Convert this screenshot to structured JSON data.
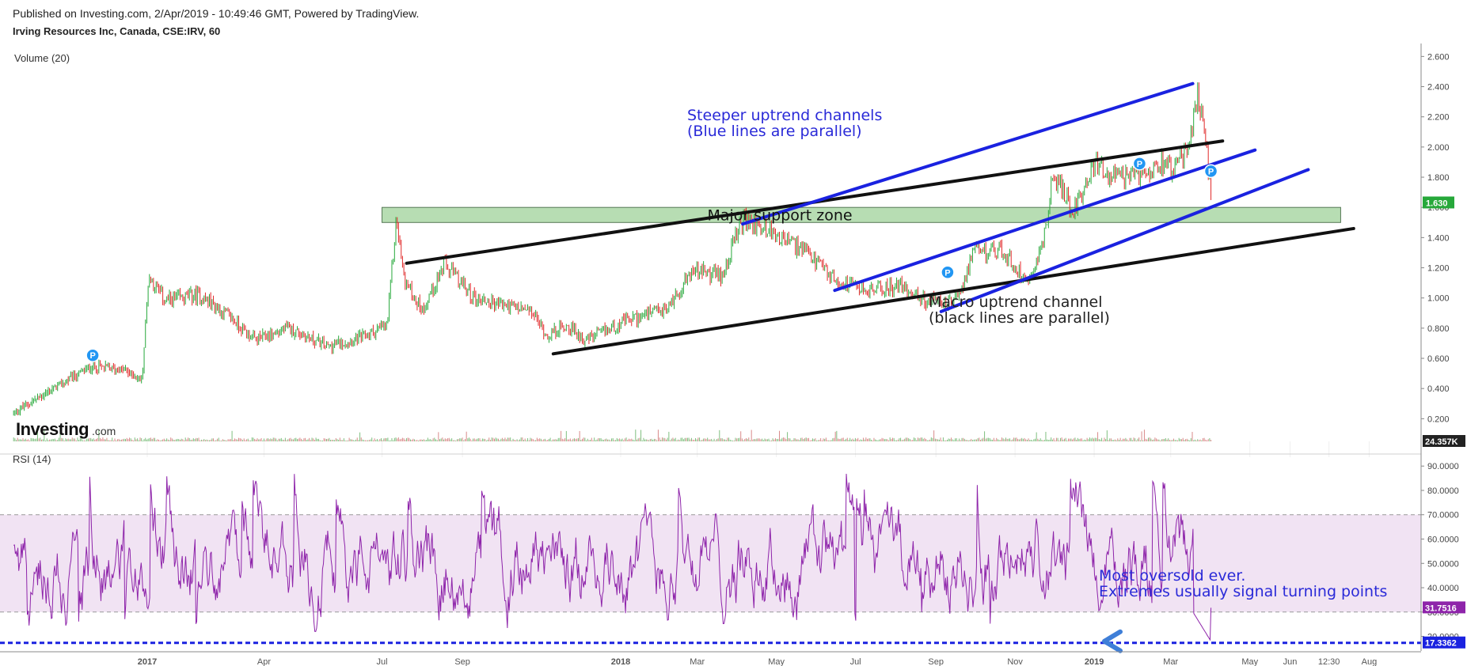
{
  "header": {
    "published": "Published on Investing.com, 2/Apr/2019 - 10:49:46 GMT, Powered by TradingView.",
    "symbol": "Irving Resources Inc, Canada, CSE:IRV, 60"
  },
  "logo": {
    "main": "Investing",
    "suffix": ".com"
  },
  "chart_data": [
    {
      "type": "candlestick",
      "pane": "price",
      "title": "Irving Resources Inc, Canada, CSE:IRV, 60",
      "volume_label": "Volume (20)",
      "y_ticks": [
        "2.600",
        "2.400",
        "2.200",
        "2.000",
        "1.800",
        "1.600",
        "1.400",
        "1.200",
        "1.000",
        "0.800",
        "0.600",
        "0.400",
        "0.200"
      ],
      "ylim": [
        0.05,
        2.67
      ],
      "last_price": "1.630",
      "volume_readout": "24.357K",
      "support_zone": {
        "label": "Major support zone",
        "low": 1.5,
        "high": 1.6,
        "x_start": "2017-07-01",
        "x_end": "2019-07-10"
      },
      "channels": [
        {
          "name": "macro",
          "color": "#111111",
          "lines": [
            {
              "x0": "2017-07-20",
              "y0": 1.23,
              "x1": "2019-04-10",
              "y1": 2.04
            },
            {
              "x0": "2017-11-10",
              "y0": 0.63,
              "x1": "2019-07-20",
              "y1": 1.46
            }
          ]
        },
        {
          "name": "steep",
          "color": "#1a22e0",
          "lines": [
            {
              "x0": "2018-04-05",
              "y0": 1.49,
              "x1": "2019-03-18",
              "y1": 2.42
            },
            {
              "x0": "2018-06-15",
              "y0": 1.05,
              "x1": "2019-05-05",
              "y1": 1.98
            },
            {
              "x0": "2018-09-05",
              "y0": 0.91,
              "x1": "2019-06-15",
              "y1": 1.85
            }
          ]
        }
      ],
      "price_path": [
        [
          "2016-09-20",
          0.24
        ],
        [
          "2016-10-25",
          0.42
        ],
        [
          "2016-11-20",
          0.55
        ],
        [
          "2016-12-15",
          0.52
        ],
        [
          "2016-12-28",
          0.45
        ],
        [
          "2017-01-02",
          1.15
        ],
        [
          "2017-01-15",
          0.98
        ],
        [
          "2017-02-10",
          1.02
        ],
        [
          "2017-03-05",
          0.88
        ],
        [
          "2017-03-25",
          0.72
        ],
        [
          "2017-04-20",
          0.8
        ],
        [
          "2017-05-20",
          0.68
        ],
        [
          "2017-06-15",
          0.74
        ],
        [
          "2017-07-05",
          0.82
        ],
        [
          "2017-07-12",
          1.53
        ],
        [
          "2017-07-18",
          1.12
        ],
        [
          "2017-08-01",
          0.92
        ],
        [
          "2017-08-18",
          1.22
        ],
        [
          "2017-09-10",
          1.0
        ],
        [
          "2017-10-05",
          0.95
        ],
        [
          "2017-10-25",
          0.9
        ],
        [
          "2017-11-05",
          0.75
        ],
        [
          "2017-11-20",
          0.82
        ],
        [
          "2017-12-05",
          0.72
        ],
        [
          "2018-01-05",
          0.85
        ],
        [
          "2018-02-05",
          0.92
        ],
        [
          "2018-02-25",
          1.18
        ],
        [
          "2018-03-20",
          1.15
        ],
        [
          "2018-04-05",
          1.52
        ],
        [
          "2018-04-25",
          1.45
        ],
        [
          "2018-05-20",
          1.32
        ],
        [
          "2018-06-15",
          1.12
        ],
        [
          "2018-07-10",
          1.05
        ],
        [
          "2018-08-05",
          1.08
        ],
        [
          "2018-08-25",
          0.98
        ],
        [
          "2018-09-15",
          0.96
        ],
        [
          "2018-10-01",
          1.3
        ],
        [
          "2018-10-20",
          1.32
        ],
        [
          "2018-11-10",
          1.12
        ],
        [
          "2018-11-22",
          1.35
        ],
        [
          "2018-12-01",
          1.82
        ],
        [
          "2018-12-15",
          1.58
        ],
        [
          "2019-01-01",
          1.88
        ],
        [
          "2019-01-20",
          1.78
        ],
        [
          "2019-02-05",
          1.82
        ],
        [
          "2019-02-20",
          1.92
        ],
        [
          "2019-03-05",
          1.86
        ],
        [
          "2019-03-15",
          2.0
        ],
        [
          "2019-03-22",
          2.35
        ],
        [
          "2019-03-28",
          2.05
        ],
        [
          "2019-04-01",
          1.63
        ]
      ],
      "markers": [
        {
          "label": "P",
          "x": "2016-11-20",
          "y": 0.62
        },
        {
          "label": "P",
          "x": "2018-09-10",
          "y": 1.17
        },
        {
          "label": "P",
          "x": "2019-02-05",
          "y": 1.89
        },
        {
          "label": "P",
          "x": "2019-04-01",
          "y": 1.84
        }
      ],
      "annotations": [
        {
          "lines": [
            "Steeper uptrend channels",
            "(Blue lines are parallel)"
          ],
          "color": "#2a2ad8"
        },
        {
          "lines": [
            "Macro uptrend channel",
            "(black lines are parallel)"
          ],
          "color": "#222222"
        }
      ]
    },
    {
      "type": "line",
      "pane": "rsi",
      "title": "RSI (14)",
      "y_ticks": [
        "90.0000",
        "80.0000",
        "70.0000",
        "60.0000",
        "50.0000",
        "40.0000",
        "30.0000",
        "20.0000"
      ],
      "ylim": [
        14,
        93
      ],
      "band": [
        30,
        70
      ],
      "last_value": "31.7516",
      "oversold_level": "17.3362",
      "annotation": [
        "Most oversold ever.",
        "Extremes usually signal turning points"
      ]
    }
  ],
  "x_axis": {
    "ticks": [
      {
        "label": "2017",
        "date": "2017-01-01",
        "bold": true
      },
      {
        "label": "Apr",
        "date": "2017-04-01"
      },
      {
        "label": "Jul",
        "date": "2017-07-01"
      },
      {
        "label": "Sep",
        "date": "2017-09-01"
      },
      {
        "label": "2018",
        "date": "2018-01-01",
        "bold": true
      },
      {
        "label": "Mar",
        "date": "2018-03-01"
      },
      {
        "label": "May",
        "date": "2018-05-01"
      },
      {
        "label": "Jul",
        "date": "2018-07-01"
      },
      {
        "label": "Sep",
        "date": "2018-09-01"
      },
      {
        "label": "Nov",
        "date": "2018-11-01"
      },
      {
        "label": "2019",
        "date": "2019-01-01",
        "bold": true
      },
      {
        "label": "Mar",
        "date": "2019-03-01"
      },
      {
        "label": "May",
        "date": "2019-05-01"
      },
      {
        "label": "Jun",
        "date": "2019-06-01"
      },
      {
        "label": "12:30",
        "date": "2019-07-01"
      },
      {
        "label": "Aug",
        "date": "2019-08-01"
      }
    ]
  },
  "colors": {
    "up": "#26a83a",
    "down": "#e02828",
    "rsi": "#8e24aa",
    "band": "#f1e3f3",
    "blue": "#1a22e0",
    "zone": "#9fd29a",
    "badge": "#2196f3"
  }
}
